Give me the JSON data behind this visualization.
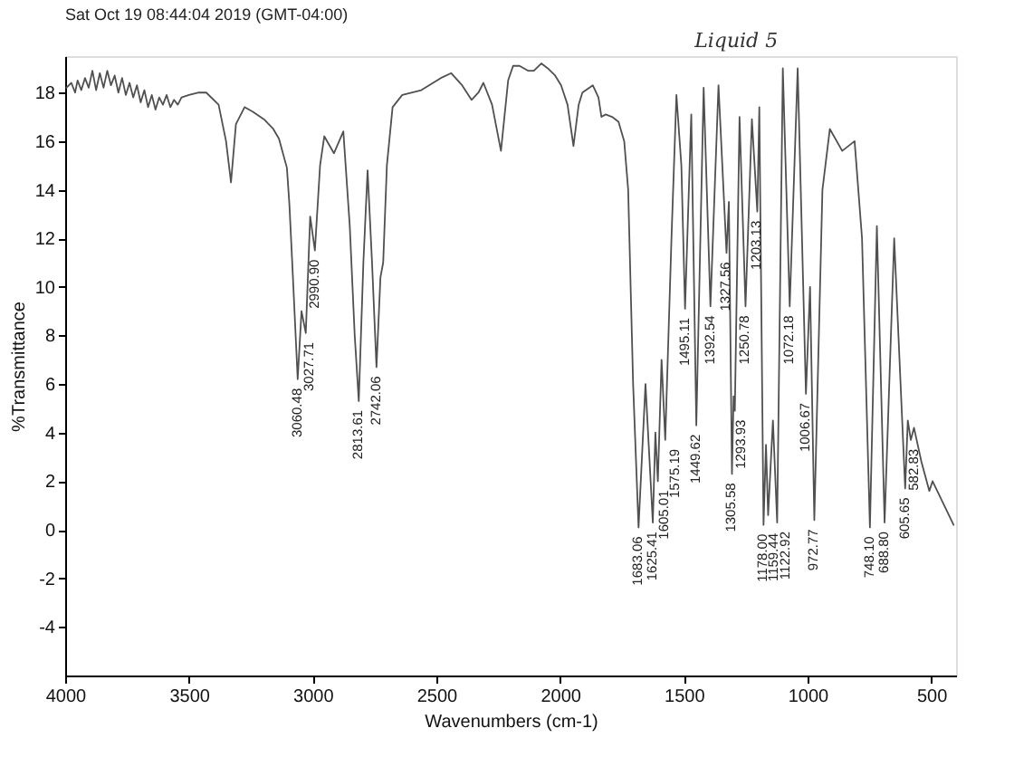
{
  "chart_data": {
    "type": "line",
    "title": "Sat Oct 19 08:44:04 2019 (GMT-04:00)",
    "xlabel": "Wavenumbers (cm-1)",
    "ylabel": "%Transmittance",
    "x": [
      3995,
      3975,
      3960,
      3950,
      3935,
      3920,
      3905,
      3890,
      3875,
      3860,
      3845,
      3830,
      3815,
      3800,
      3785,
      3770,
      3755,
      3740,
      3725,
      3710,
      3695,
      3680,
      3665,
      3650,
      3635,
      3620,
      3605,
      3590,
      3575,
      3560,
      3545,
      3530,
      3500,
      3460,
      3430,
      3380,
      3350,
      3330,
      3310,
      3275,
      3240,
      3197,
      3159,
      3136,
      3104,
      3094,
      3083,
      3060.48,
      3045,
      3027.71,
      3010,
      2990.9,
      2970,
      2953,
      2914,
      2876,
      2850,
      2830,
      2813.61,
      2795,
      2778,
      2760,
      2742.06,
      2726,
      2715,
      2700,
      2677,
      2638,
      2561,
      2482,
      2440,
      2396,
      2358,
      2330,
      2310,
      2275,
      2239,
      2210,
      2190,
      2164,
      2130,
      2106,
      2076,
      2050,
      2020,
      1996,
      1970,
      1946,
      1925,
      1910,
      1868,
      1845,
      1833,
      1816,
      1790,
      1764,
      1741,
      1725,
      1705,
      1683.06,
      1655,
      1625.41,
      1615,
      1605.01,
      1590,
      1575.19,
      1550,
      1530,
      1510,
      1495.11,
      1470,
      1449.62,
      1420,
      1392.54,
      1360,
      1327.56,
      1318,
      1305.58,
      1299,
      1293.93,
      1275,
      1250.78,
      1225,
      1203.13,
      1195,
      1178,
      1168,
      1159.44,
      1140,
      1122.92,
      1100,
      1072.18,
      1040,
      1006.67,
      990,
      972.77,
      940,
      910,
      860,
      810,
      780,
      748.1,
      720,
      688.8,
      650,
      605.65,
      595,
      582.83,
      570,
      540,
      508,
      495,
      410
    ],
    "series": [
      {
        "color": "#505050",
        "values": [
          18.2,
          18.4,
          18.0,
          18.5,
          18.1,
          18.6,
          18.2,
          18.9,
          18.1,
          18.8,
          18.2,
          18.9,
          18.3,
          18.7,
          18.0,
          18.6,
          17.9,
          18.4,
          17.8,
          18.3,
          17.6,
          18.1,
          17.4,
          17.9,
          17.3,
          17.8,
          17.5,
          17.9,
          17.4,
          17.7,
          17.5,
          17.8,
          17.9,
          18.0,
          18.0,
          17.5,
          16.0,
          14.3,
          16.7,
          17.4,
          17.2,
          16.9,
          16.5,
          16.1,
          14.9,
          13.4,
          11.1,
          6.2,
          9.0,
          8.1,
          12.9,
          11.5,
          15.0,
          16.2,
          15.5,
          16.4,
          12.5,
          8.0,
          5.3,
          11.0,
          14.8,
          11.0,
          6.7,
          10.4,
          11.0,
          15.0,
          17.4,
          17.9,
          18.1,
          18.6,
          18.8,
          18.3,
          17.7,
          18.0,
          18.4,
          17.5,
          15.6,
          18.5,
          19.1,
          19.1,
          18.9,
          18.9,
          19.2,
          19.0,
          18.7,
          18.3,
          17.5,
          15.8,
          17.5,
          18.0,
          18.3,
          17.8,
          17.0,
          17.1,
          17.0,
          16.8,
          16.0,
          14.0,
          6.0,
          0.1,
          6.0,
          0.3,
          4.0,
          2.0,
          7.0,
          3.7,
          12.0,
          17.9,
          15.0,
          9.1,
          17.1,
          4.3,
          18.2,
          9.2,
          18.3,
          11.4,
          13.5,
          2.3,
          5.5,
          4.9,
          17.0,
          9.2,
          16.9,
          13.1,
          17.4,
          0.2,
          3.5,
          0.6,
          4.5,
          0.3,
          19.0,
          9.2,
          19.0,
          5.6,
          10.0,
          0.4,
          14.0,
          16.5,
          15.6,
          16.0,
          12.0,
          0.1,
          12.5,
          0.3,
          12.0,
          1.7,
          4.5,
          3.7,
          4.2,
          2.8,
          1.6,
          2.0,
          0.2
        ]
      }
    ],
    "xlim": [
      4000,
      400
    ],
    "ylim": [
      -6,
      19.5
    ],
    "xticks": [
      4000,
      3500,
      3000,
      2500,
      2000,
      1500,
      1000,
      500
    ],
    "yticks": [
      -4,
      -2,
      0,
      2,
      4,
      6,
      8,
      10,
      12,
      14,
      16,
      18
    ],
    "annotations": [
      {
        "text": "3060.48",
        "x": 3060.48,
        "y": 6.2
      },
      {
        "text": "3027.71",
        "x": 3027.71,
        "y": 8.1
      },
      {
        "text": "2990.90",
        "x": 2990.9,
        "y": 11.5
      },
      {
        "text": "2813.61",
        "x": 2813.61,
        "y": 5.3
      },
      {
        "text": "2742.06",
        "x": 2742.06,
        "y": 6.7
      },
      {
        "text": "1683.06",
        "x": 1683.06,
        "y": 0.1
      },
      {
        "text": "1625.41",
        "x": 1625.41,
        "y": 0.3
      },
      {
        "text": "1605.01",
        "x": 1605.01,
        "y": 2.0
      },
      {
        "text": "1575.19",
        "x": 1575.19,
        "y": 3.7
      },
      {
        "text": "1495.11",
        "x": 1495.11,
        "y": 9.1
      },
      {
        "text": "1449.62",
        "x": 1449.62,
        "y": 4.3
      },
      {
        "text": "1392.54",
        "x": 1392.54,
        "y": 9.2
      },
      {
        "text": "1327.56",
        "x": 1327.56,
        "y": 11.4
      },
      {
        "text": "1305.58",
        "x": 1305.58,
        "y": 2.3
      },
      {
        "text": "1293.93",
        "x": 1293.93,
        "y": 4.9
      },
      {
        "text": "1250.78",
        "x": 1250.78,
        "y": 9.2
      },
      {
        "text": "1203.13",
        "x": 1203.13,
        "y": 13.1
      },
      {
        "text": "1178.00",
        "x": 1178,
        "y": 0.2
      },
      {
        "text": "1159.44",
        "x": 1159.44,
        "y": 0.6
      },
      {
        "text": "1122.92",
        "x": 1122.92,
        "y": 0.3
      },
      {
        "text": "1072.18",
        "x": 1072.18,
        "y": 9.2
      },
      {
        "text": "1006.67",
        "x": 1006.67,
        "y": 5.6
      },
      {
        "text": "972.77",
        "x": 972.77,
        "y": 0.4
      },
      {
        "text": "748.10",
        "x": 748.1,
        "y": 0.1
      },
      {
        "text": "688.80",
        "x": 688.8,
        "y": 0.3
      },
      {
        "text": "605.65",
        "x": 605.65,
        "y": 1.7
      },
      {
        "text": "582.83",
        "x": 582.83,
        "y": 3.7
      },
      "Liquid 5"
    ]
  }
}
